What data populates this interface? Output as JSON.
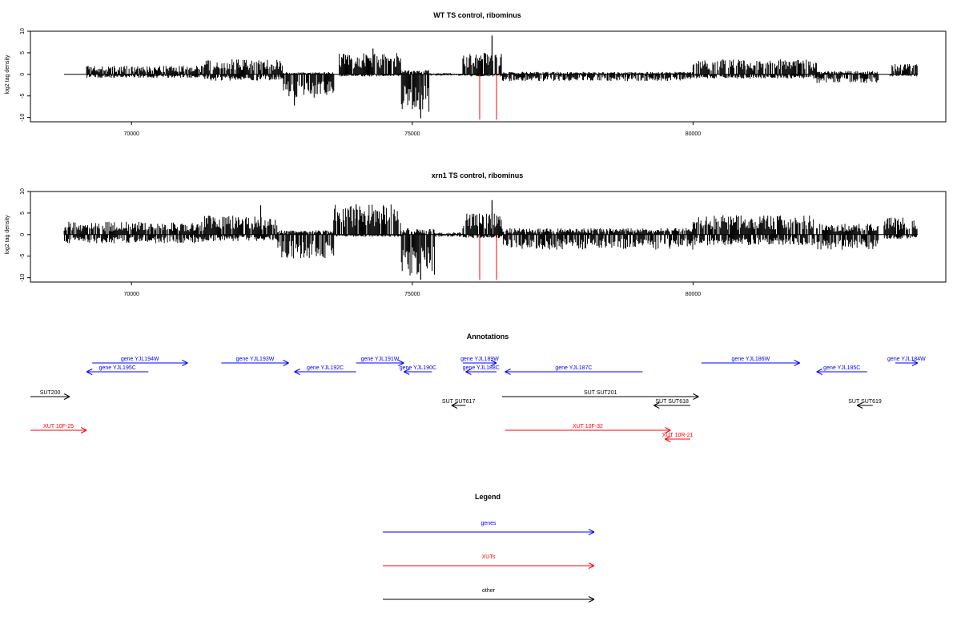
{
  "chart_data": [
    {
      "type": "bar",
      "title": "WT TS control, ribominus",
      "ylabel": "log2 tag density",
      "xlabel": "",
      "xlim": [
        68200,
        84500
      ],
      "ylim": [
        -11,
        10
      ],
      "x_ticks": [
        70000,
        75000,
        80000
      ],
      "y_ticks": [
        10,
        5,
        0,
        -5,
        -10
      ],
      "x_tick_labels": [
        "70000",
        "75000",
        "80000"
      ],
      "y_tick_labels": [
        "10",
        "5",
        "0",
        "-5",
        "-10"
      ],
      "baseline_range": [
        68800,
        84000
      ],
      "red_markers": [
        76200,
        76500
      ],
      "red_marker_range": [
        -10.5,
        0
      ],
      "density_profile": [
        {
          "start": 69200,
          "end": 71300,
          "pos": 2.0,
          "neg": -0.8
        },
        {
          "start": 71300,
          "end": 72700,
          "pos": 3.5,
          "neg": -1.5
        },
        {
          "start": 72700,
          "end": 73600,
          "pos": 0.5,
          "neg": -5.5
        },
        {
          "start": 73700,
          "end": 74800,
          "pos": 5.0,
          "neg": -0.5
        },
        {
          "start": 74800,
          "end": 75300,
          "pos": 1.0,
          "neg": -9.0
        },
        {
          "start": 75300,
          "end": 75900,
          "pos": 0.3,
          "neg": -0.3
        },
        {
          "start": 75900,
          "end": 76600,
          "pos": 5.0,
          "neg": -0.5
        },
        {
          "start": 76600,
          "end": 80000,
          "pos": 0.6,
          "neg": -1.6
        },
        {
          "start": 80000,
          "end": 82200,
          "pos": 3.5,
          "neg": -1.0
        },
        {
          "start": 82200,
          "end": 83300,
          "pos": 0.8,
          "neg": -2.0
        },
        {
          "start": 83500,
          "end": 84000,
          "pos": 2.5,
          "neg": -0.5
        }
      ],
      "peaks": [
        {
          "x": 76420,
          "y": 9.0
        },
        {
          "x": 75150,
          "y": -10.2
        },
        {
          "x": 72900,
          "y": -7.2
        },
        {
          "x": 74300,
          "y": 6.0
        }
      ]
    },
    {
      "type": "bar",
      "title": "xrn1 TS control, ribominus",
      "ylabel": "log2 tag density",
      "xlabel": "",
      "xlim": [
        68200,
        84500
      ],
      "ylim": [
        -11,
        10
      ],
      "x_ticks": [
        70000,
        75000,
        80000
      ],
      "y_ticks": [
        10,
        5,
        0,
        -5,
        -10
      ],
      "x_tick_labels": [
        "70000",
        "75000",
        "80000"
      ],
      "y_tick_labels": [
        "10",
        "5",
        "0",
        "-5",
        "-10"
      ],
      "baseline_range": [
        68800,
        84000
      ],
      "red_markers": [
        76200,
        76500
      ],
      "red_marker_range": [
        -10.5,
        0
      ],
      "density_profile": [
        {
          "start": 68800,
          "end": 71300,
          "pos": 3.0,
          "neg": -2.0
        },
        {
          "start": 71300,
          "end": 72600,
          "pos": 4.5,
          "neg": -1.5
        },
        {
          "start": 72600,
          "end": 73600,
          "pos": 1.0,
          "neg": -5.5
        },
        {
          "start": 73600,
          "end": 74800,
          "pos": 7.0,
          "neg": -0.5
        },
        {
          "start": 74800,
          "end": 75400,
          "pos": 1.5,
          "neg": -9.5
        },
        {
          "start": 75400,
          "end": 75900,
          "pos": 0.5,
          "neg": -0.5
        },
        {
          "start": 75900,
          "end": 76600,
          "pos": 5.0,
          "neg": -0.8
        },
        {
          "start": 76600,
          "end": 80000,
          "pos": 1.5,
          "neg": -3.5
        },
        {
          "start": 80000,
          "end": 82200,
          "pos": 4.5,
          "neg": -2.5
        },
        {
          "start": 82200,
          "end": 83300,
          "pos": 2.5,
          "neg": -3.5
        },
        {
          "start": 83400,
          "end": 84000,
          "pos": 4.0,
          "neg": -1.0
        }
      ],
      "peaks": [
        {
          "x": 76420,
          "y": 8.0
        },
        {
          "x": 75150,
          "y": -10.5
        },
        {
          "x": 72300,
          "y": 6.8
        },
        {
          "x": 74000,
          "y": 7.0
        }
      ]
    }
  ],
  "annotations": {
    "title": "Annotations",
    "xlim": [
      68200,
      84500
    ],
    "features": [
      {
        "label": "gene YJL194W",
        "start": 69300,
        "end": 71000,
        "strand": "+",
        "row": 0,
        "category": "genes"
      },
      {
        "label": "gene YJL195C",
        "start": 69200,
        "end": 70300,
        "strand": "-",
        "row": 1,
        "category": "genes"
      },
      {
        "label": "gene YJL193W",
        "start": 71600,
        "end": 72800,
        "strand": "+",
        "row": 0,
        "category": "genes"
      },
      {
        "label": "gene YJL192C",
        "start": 72900,
        "end": 74000,
        "strand": "-",
        "row": 1,
        "category": "genes"
      },
      {
        "label": "gene YJL191W",
        "start": 74000,
        "end": 74850,
        "strand": "+",
        "row": 0,
        "category": "genes"
      },
      {
        "label": "gene YJL190C",
        "start": 74850,
        "end": 75350,
        "strand": "-",
        "row": 1,
        "category": "genes"
      },
      {
        "label": "gene YJL189W",
        "start": 75900,
        "end": 76500,
        "strand": "+",
        "row": 0,
        "category": "genes"
      },
      {
        "label": "gene YJL188C",
        "start": 75950,
        "end": 76500,
        "strand": "-",
        "row": 1,
        "category": "genes"
      },
      {
        "label": "gene YJL187C",
        "start": 76650,
        "end": 79100,
        "strand": "-",
        "row": 1,
        "category": "genes"
      },
      {
        "label": "gene YJL186W",
        "start": 80150,
        "end": 81900,
        "strand": "+",
        "row": 0,
        "category": "genes"
      },
      {
        "label": "gene YJL185C",
        "start": 82200,
        "end": 83100,
        "strand": "-",
        "row": 1,
        "category": "genes"
      },
      {
        "label": "gene YJL184W",
        "start": 83600,
        "end": 84000,
        "strand": "+",
        "row": 0,
        "category": "genes"
      },
      {
        "label": "SUT200",
        "start": 68200,
        "end": 68900,
        "strand": "+",
        "row": 2,
        "category": "other"
      },
      {
        "label": "SUT SUT201",
        "start": 76600,
        "end": 80100,
        "strand": "+",
        "row": 2,
        "category": "other"
      },
      {
        "label": "SUT SUT617",
        "start": 75700,
        "end": 75950,
        "strand": "-",
        "row": 3,
        "category": "other"
      },
      {
        "label": "SUT SUT618",
        "start": 79300,
        "end": 79950,
        "strand": "-",
        "row": 3,
        "category": "other"
      },
      {
        "label": "SUT SUT619",
        "start": 82920,
        "end": 83200,
        "strand": "-",
        "row": 3,
        "category": "other"
      },
      {
        "label": "XUT 10F-25",
        "start": 68200,
        "end": 69200,
        "strand": "+",
        "row": 4,
        "category": "XUTs"
      },
      {
        "label": "XUT 10F-32",
        "start": 76650,
        "end": 79600,
        "strand": "+",
        "row": 4,
        "category": "XUTs"
      },
      {
        "label": "XUT 10R-21",
        "start": 79500,
        "end": 79950,
        "strand": "-",
        "row": 5,
        "category": "XUTs"
      }
    ]
  },
  "legend": {
    "title": "Legend",
    "items": [
      {
        "label": "genes",
        "color": "#0000ff"
      },
      {
        "label": "XUTs",
        "color": "#ff0000"
      },
      {
        "label": "other",
        "color": "#000000"
      }
    ]
  },
  "colors": {
    "genes": "#0000ff",
    "XUTs": "#ff0000",
    "other": "#000000",
    "data": "#000000",
    "marker": "#ff0000"
  }
}
